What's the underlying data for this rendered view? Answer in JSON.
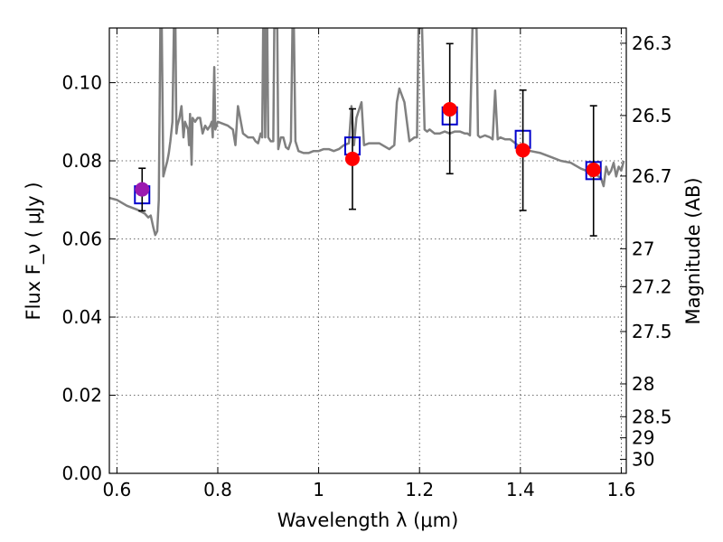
{
  "chart_data": {
    "type": "scatter",
    "title": "",
    "xlabel": "Wavelength  λ (μm)",
    "ylabel": "Flux  F_ν  ( μJy )",
    "ylabel_right": "Magnitude (AB)",
    "xlim": [
      0.585,
      1.61
    ],
    "ylim": [
      0.0,
      0.114
    ],
    "grid": true,
    "x_ticks": [
      0.6,
      0.8,
      1.0,
      1.2,
      1.4,
      1.6
    ],
    "x_tick_labels": [
      "0.6",
      "0.8",
      "1",
      "1.2",
      "1.4",
      "1.6"
    ],
    "y_ticks": [
      0.0,
      0.02,
      0.04,
      0.06,
      0.08,
      0.1
    ],
    "y_tick_labels": [
      "0.00",
      "0.02",
      "0.04",
      "0.06",
      "0.08",
      "0.10"
    ],
    "right_ticks": [
      {
        "flux": 0.1101,
        "label": "26.3"
      },
      {
        "flux": 0.0916,
        "label": "26.5"
      },
      {
        "flux": 0.0761,
        "label": "26.7"
      },
      {
        "flux": 0.0575,
        "label": "27"
      },
      {
        "flux": 0.0478,
        "label": "27.2"
      },
      {
        "flux": 0.0363,
        "label": "27.5"
      },
      {
        "flux": 0.0229,
        "label": "28"
      },
      {
        "flux": 0.0145,
        "label": "28.5"
      },
      {
        "flux": 0.0091,
        "label": "29"
      },
      {
        "flux": 0.0036,
        "label": "30"
      }
    ],
    "series": [
      {
        "role": "model-spectrum",
        "color": "#808080",
        "x": [
          0.585,
          0.6,
          0.62,
          0.64,
          0.655,
          0.662,
          0.667,
          0.672,
          0.676,
          0.68,
          0.683,
          0.686,
          0.689,
          0.692,
          0.696,
          0.7,
          0.703,
          0.706,
          0.71,
          0.713,
          0.716,
          0.718,
          0.72,
          0.724,
          0.728,
          0.732,
          0.735,
          0.738,
          0.741,
          0.743,
          0.745,
          0.748,
          0.75,
          0.755,
          0.76,
          0.765,
          0.77,
          0.775,
          0.78,
          0.785,
          0.788,
          0.79,
          0.793,
          0.795,
          0.8,
          0.82,
          0.83,
          0.835,
          0.84,
          0.85,
          0.86,
          0.87,
          0.875,
          0.88,
          0.885,
          0.888,
          0.89,
          0.892,
          0.894,
          0.896,
          0.898,
          0.9,
          0.905,
          0.91,
          0.912,
          0.914,
          0.916,
          0.918,
          0.92,
          0.925,
          0.93,
          0.935,
          0.94,
          0.945,
          0.948,
          0.951,
          0.954,
          0.96,
          0.97,
          0.98,
          0.99,
          1.0,
          1.01,
          1.02,
          1.03,
          1.04,
          1.05,
          1.06,
          1.065,
          1.07,
          1.075,
          1.08,
          1.085,
          1.09,
          1.1,
          1.12,
          1.14,
          1.15,
          1.155,
          1.16,
          1.17,
          1.18,
          1.19,
          1.195,
          1.198,
          1.2,
          1.205,
          1.21,
          1.215,
          1.22,
          1.23,
          1.24,
          1.25,
          1.26,
          1.27,
          1.28,
          1.29,
          1.295,
          1.3,
          1.305,
          1.31,
          1.313,
          1.316,
          1.32,
          1.33,
          1.34,
          1.345,
          1.35,
          1.355,
          1.36,
          1.37,
          1.38,
          1.4,
          1.42,
          1.44,
          1.46,
          1.48,
          1.5,
          1.52,
          1.53,
          1.535,
          1.54,
          1.55,
          1.56,
          1.565,
          1.57,
          1.575,
          1.58,
          1.585,
          1.59,
          1.595,
          1.6,
          1.605
        ],
        "y": [
          0.0705,
          0.07,
          0.0685,
          0.0675,
          0.0665,
          0.0655,
          0.066,
          0.063,
          0.061,
          0.062,
          0.07,
          0.114,
          0.114,
          0.076,
          0.078,
          0.08,
          0.082,
          0.085,
          0.09,
          0.114,
          0.114,
          0.087,
          0.089,
          0.091,
          0.094,
          0.086,
          0.09,
          0.089,
          0.088,
          0.084,
          0.092,
          0.079,
          0.091,
          0.09,
          0.091,
          0.091,
          0.087,
          0.089,
          0.088,
          0.089,
          0.09,
          0.086,
          0.104,
          0.088,
          0.09,
          0.089,
          0.088,
          0.084,
          0.094,
          0.087,
          0.086,
          0.086,
          0.085,
          0.0845,
          0.087,
          0.086,
          0.114,
          0.114,
          0.086,
          0.114,
          0.114,
          0.086,
          0.085,
          0.085,
          0.114,
          0.114,
          0.114,
          0.114,
          0.083,
          0.086,
          0.086,
          0.0835,
          0.083,
          0.085,
          0.114,
          0.114,
          0.085,
          0.0825,
          0.082,
          0.082,
          0.0825,
          0.0825,
          0.083,
          0.083,
          0.0825,
          0.083,
          0.084,
          0.0845,
          0.094,
          0.084,
          0.091,
          0.093,
          0.095,
          0.084,
          0.0845,
          0.0845,
          0.083,
          0.084,
          0.095,
          0.0985,
          0.095,
          0.085,
          0.086,
          0.086,
          0.114,
          0.114,
          0.114,
          0.088,
          0.0875,
          0.088,
          0.087,
          0.087,
          0.0875,
          0.087,
          0.0875,
          0.0875,
          0.087,
          0.087,
          0.0865,
          0.114,
          0.114,
          0.114,
          0.0865,
          0.086,
          0.0865,
          0.086,
          0.0855,
          0.098,
          0.0855,
          0.086,
          0.0855,
          0.0855,
          0.0835,
          0.0825,
          0.082,
          0.081,
          0.08,
          0.0795,
          0.078,
          0.0775,
          0.0775,
          0.076,
          0.0765,
          0.0755,
          0.0735,
          0.0785,
          0.0765,
          0.0775,
          0.0795,
          0.076,
          0.0785,
          0.0775,
          0.08
        ]
      },
      {
        "role": "model-photometry",
        "color": "#0000cc",
        "x": [
          0.65,
          1.067,
          1.26,
          1.405,
          1.545
        ],
        "y": [
          0.0713,
          0.0838,
          0.0915,
          0.0855,
          0.0775
        ]
      },
      {
        "role": "observed",
        "colors": [
          "#9b19b0",
          "#ff0000",
          "#ff0000",
          "#ff0000",
          "#ff0000"
        ],
        "x": [
          0.65,
          1.067,
          1.26,
          1.405,
          1.545
        ],
        "y": [
          0.0727,
          0.0805,
          0.0932,
          0.0827,
          0.0777
        ],
        "yerr_low": [
          0.0672,
          0.0676,
          0.0767,
          0.0673,
          0.0608
        ],
        "yerr_high": [
          0.0781,
          0.0933,
          0.11,
          0.0981,
          0.0941
        ]
      }
    ]
  }
}
